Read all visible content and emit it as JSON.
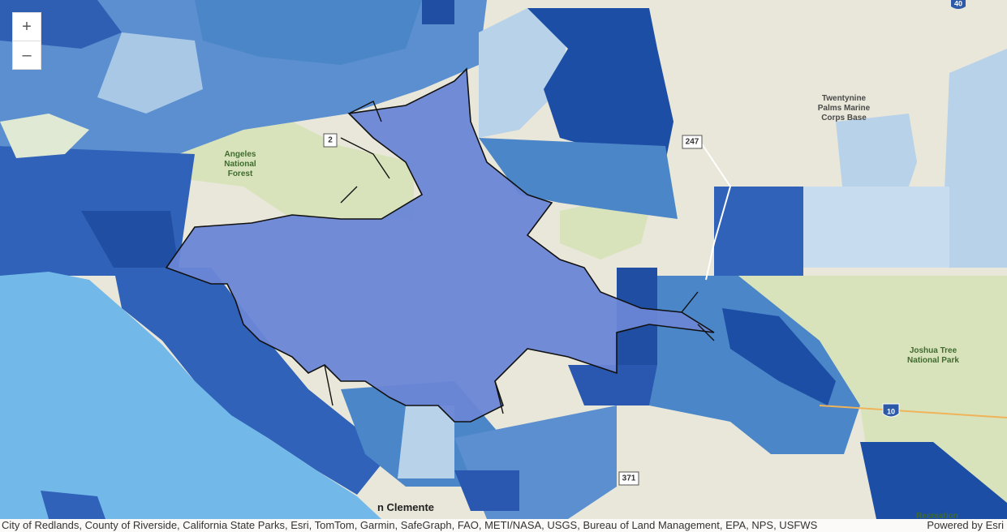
{
  "zoom_controls": {
    "zoom_in": "+",
    "zoom_out": "–"
  },
  "map_labels": [
    {
      "lines": [
        "Angeles",
        "National",
        "Forest"
      ]
    },
    {
      "lines": [
        "Twentynine",
        "Palms Marine",
        "Corps Base"
      ]
    },
    {
      "lines": [
        "Joshua Tree",
        "National Park"
      ]
    },
    {
      "lines": [
        "n Clemente"
      ]
    },
    {
      "lines": [
        "Recreation"
      ]
    }
  ],
  "highway_shields": [
    "40",
    "2",
    "247",
    "10",
    "371"
  ],
  "attribution": {
    "sources": "City of Redlands, County of Riverside, California State Parks, Esri, TomTom, Garmin, SafeGraph, FAO, METI/NASA, USGS, Bureau of Land Management, EPA, NPS, USFWS",
    "powered_by": "Powered by Esri"
  }
}
